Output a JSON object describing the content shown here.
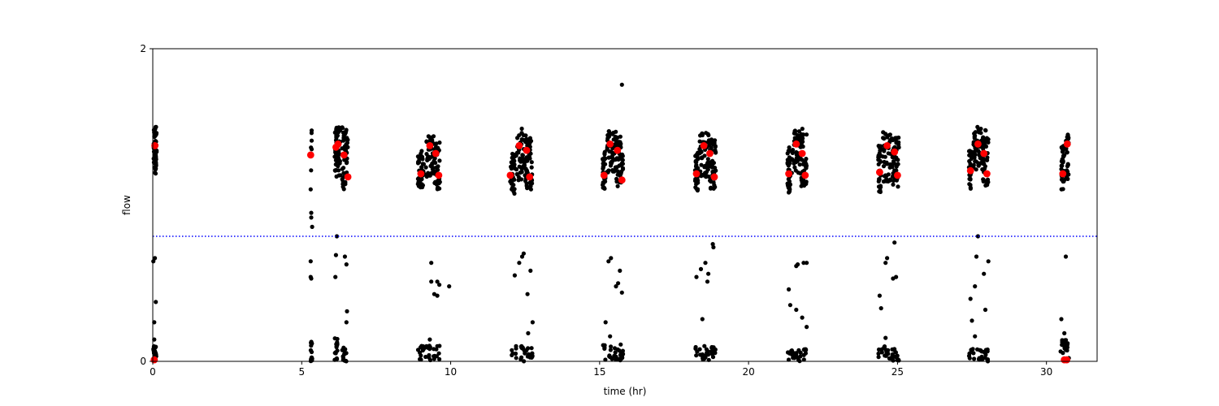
{
  "chart_data": {
    "type": "scatter",
    "xlabel": "time (hr)",
    "ylabel": "flow",
    "xlim": [
      0,
      31.7
    ],
    "ylim": [
      0,
      2
    ],
    "xticks": [
      0,
      5,
      10,
      15,
      20,
      25,
      30
    ],
    "yticks": [
      0,
      2
    ],
    "threshold": {
      "y": 0.8,
      "color": "#0000ff",
      "style": "dotted"
    },
    "colors": {
      "black": "#000000",
      "red": "#ff0000"
    },
    "series": [
      {
        "color": "#000000",
        "clusters": [
          {
            "x": [
              0.03,
              0.13
            ],
            "y": [
              1.2,
              1.5
            ],
            "count": 60
          },
          {
            "x": [
              5.3,
              5.35
            ],
            "y": [
              1.22,
              1.5
            ],
            "count": 6
          },
          {
            "x": [
              6.1,
              6.3
            ],
            "y": [
              1.18,
              1.5
            ],
            "count": 50
          },
          {
            "x": [
              6.35,
              6.55
            ],
            "y": [
              1.1,
              1.5
            ],
            "count": 45
          },
          {
            "x": [
              8.9,
              9.1
            ],
            "y": [
              1.1,
              1.35
            ],
            "count": 35
          },
          {
            "x": [
              9.15,
              9.45
            ],
            "y": [
              1.18,
              1.45
            ],
            "count": 45
          },
          {
            "x": [
              9.45,
              9.65
            ],
            "y": [
              1.1,
              1.4
            ],
            "count": 40
          },
          {
            "x": [
              12.0,
              12.15
            ],
            "y": [
              1.07,
              1.33
            ],
            "count": 35
          },
          {
            "x": [
              12.2,
              12.55
            ],
            "y": [
              1.15,
              1.5
            ],
            "count": 50
          },
          {
            "x": [
              12.55,
              12.75
            ],
            "y": [
              1.1,
              1.45
            ],
            "count": 40
          },
          {
            "x": [
              15.1,
              15.2
            ],
            "y": [
              1.1,
              1.35
            ],
            "count": 35
          },
          {
            "x": [
              15.25,
              15.55
            ],
            "y": [
              1.2,
              1.48
            ],
            "count": 50
          },
          {
            "x": [
              15.55,
              15.8
            ],
            "y": [
              1.12,
              1.45
            ],
            "count": 45
          },
          {
            "x": [
              18.2,
              18.3
            ],
            "y": [
              1.08,
              1.35
            ],
            "count": 35
          },
          {
            "x": [
              18.35,
              18.7
            ],
            "y": [
              1.18,
              1.47
            ],
            "count": 50
          },
          {
            "x": [
              18.7,
              18.9
            ],
            "y": [
              1.1,
              1.42
            ],
            "count": 40
          },
          {
            "x": [
              21.3,
              21.4
            ],
            "y": [
              1.08,
              1.38
            ],
            "count": 35
          },
          {
            "x": [
              21.45,
              21.75
            ],
            "y": [
              1.2,
              1.5
            ],
            "count": 50
          },
          {
            "x": [
              21.75,
              21.95
            ],
            "y": [
              1.12,
              1.5
            ],
            "count": 45
          },
          {
            "x": [
              24.35,
              24.45
            ],
            "y": [
              1.08,
              1.38
            ],
            "count": 35
          },
          {
            "x": [
              24.5,
              24.85
            ],
            "y": [
              1.15,
              1.47
            ],
            "count": 50
          },
          {
            "x": [
              24.85,
              25.05
            ],
            "y": [
              1.1,
              1.45
            ],
            "count": 40
          },
          {
            "x": [
              27.4,
              27.5
            ],
            "y": [
              1.1,
              1.38
            ],
            "count": 35
          },
          {
            "x": [
              27.55,
              27.85
            ],
            "y": [
              1.2,
              1.5
            ],
            "count": 50
          },
          {
            "x": [
              27.85,
              28.05
            ],
            "y": [
              1.12,
              1.48
            ],
            "count": 40
          },
          {
            "x": [
              30.5,
              30.6
            ],
            "y": [
              1.1,
              1.38
            ],
            "count": 35
          },
          {
            "x": [
              30.65,
              30.75
            ],
            "y": [
              1.15,
              1.45
            ],
            "count": 25
          },
          {
            "x": [
              0.02,
              0.12
            ],
            "y": [
              0,
              0.1
            ],
            "count": 20
          },
          {
            "x": [
              5.3,
              5.35
            ],
            "y": [
              0,
              0.15
            ],
            "count": 15
          },
          {
            "x": [
              6.1,
              6.2
            ],
            "y": [
              0,
              0.15
            ],
            "count": 15
          },
          {
            "x": [
              6.35,
              6.5
            ],
            "y": [
              0,
              0.09
            ],
            "count": 15
          },
          {
            "x": [
              8.9,
              9.65
            ],
            "y": [
              0,
              0.1
            ],
            "count": 30
          },
          {
            "x": [
              12.0,
              12.75
            ],
            "y": [
              0,
              0.1
            ],
            "count": 30
          },
          {
            "x": [
              15.1,
              15.8
            ],
            "y": [
              0,
              0.12
            ],
            "count": 30
          },
          {
            "x": [
              18.2,
              18.9
            ],
            "y": [
              0,
              0.1
            ],
            "count": 30
          },
          {
            "x": [
              21.3,
              21.95
            ],
            "y": [
              0,
              0.08
            ],
            "count": 30
          },
          {
            "x": [
              24.35,
              25.05
            ],
            "y": [
              0,
              0.1
            ],
            "count": 30
          },
          {
            "x": [
              27.4,
              28.05
            ],
            "y": [
              0,
              0.08
            ],
            "count": 30
          },
          {
            "x": [
              30.45,
              30.75
            ],
            "y": [
              0,
              0.14
            ],
            "count": 20
          }
        ],
        "points": [
          [
            0.02,
            0.64
          ],
          [
            0.07,
            0.66
          ],
          [
            0.1,
            0.38
          ],
          [
            0.05,
            0.25
          ],
          [
            0.05,
            0.14
          ],
          [
            5.3,
            1.1
          ],
          [
            5.32,
            0.95
          ],
          [
            5.32,
            0.92
          ],
          [
            5.35,
            0.86
          ],
          [
            5.3,
            0.64
          ],
          [
            5.3,
            0.54
          ],
          [
            5.32,
            0.53
          ],
          [
            6.18,
            0.8
          ],
          [
            6.15,
            0.68
          ],
          [
            6.13,
            0.54
          ],
          [
            6.45,
            0.67
          ],
          [
            6.5,
            0.62
          ],
          [
            6.52,
            0.32
          ],
          [
            6.5,
            0.25
          ],
          [
            9.95,
            0.48
          ],
          [
            9.35,
            0.63
          ],
          [
            9.35,
            0.51
          ],
          [
            9.45,
            0.43
          ],
          [
            9.55,
            0.51
          ],
          [
            9.62,
            0.49
          ],
          [
            9.55,
            0.42
          ],
          [
            9.3,
            0.14
          ],
          [
            12.15,
            0.55
          ],
          [
            12.3,
            0.63
          ],
          [
            12.4,
            0.67
          ],
          [
            12.45,
            0.69
          ],
          [
            12.58,
            0.43
          ],
          [
            12.68,
            0.58
          ],
          [
            12.75,
            0.25
          ],
          [
            12.6,
            0.18
          ],
          [
            15.2,
            0.25
          ],
          [
            15.3,
            0.64
          ],
          [
            15.38,
            0.66
          ],
          [
            15.55,
            0.48
          ],
          [
            15.62,
            0.5
          ],
          [
            15.68,
            0.58
          ],
          [
            15.75,
            0.44
          ],
          [
            15.35,
            0.16
          ],
          [
            15.75,
            1.77
          ],
          [
            18.25,
            0.54
          ],
          [
            18.4,
            0.59
          ],
          [
            18.55,
            0.63
          ],
          [
            18.65,
            0.56
          ],
          [
            18.62,
            0.51
          ],
          [
            18.8,
            0.75
          ],
          [
            18.82,
            0.73
          ],
          [
            18.45,
            0.27
          ],
          [
            21.35,
            0.46
          ],
          [
            21.4,
            0.36
          ],
          [
            21.6,
            0.33
          ],
          [
            21.6,
            0.61
          ],
          [
            21.65,
            0.62
          ],
          [
            21.85,
            0.63
          ],
          [
            21.95,
            0.63
          ],
          [
            21.8,
            0.28
          ],
          [
            21.95,
            0.22
          ],
          [
            24.4,
            0.42
          ],
          [
            24.45,
            0.34
          ],
          [
            24.6,
            0.63
          ],
          [
            24.65,
            0.66
          ],
          [
            24.85,
            0.53
          ],
          [
            24.95,
            0.54
          ],
          [
            24.9,
            0.76
          ],
          [
            24.6,
            0.15
          ],
          [
            27.45,
            0.4
          ],
          [
            27.5,
            0.26
          ],
          [
            27.6,
            0.48
          ],
          [
            27.65,
            0.67
          ],
          [
            27.7,
            0.8
          ],
          [
            27.95,
            0.33
          ],
          [
            27.9,
            0.56
          ],
          [
            28.05,
            0.64
          ],
          [
            27.6,
            0.16
          ],
          [
            30.5,
            0.27
          ],
          [
            30.65,
            0.67
          ],
          [
            30.6,
            0.18
          ]
        ]
      },
      {
        "color": "#ff0000",
        "points": [
          [
            0.07,
            1.38
          ],
          [
            0.05,
            0.01
          ],
          [
            5.3,
            1.32
          ],
          [
            6.15,
            1.37
          ],
          [
            6.22,
            1.39
          ],
          [
            6.42,
            1.32
          ],
          [
            6.55,
            1.18
          ],
          [
            9.0,
            1.2
          ],
          [
            9.3,
            1.38
          ],
          [
            9.5,
            1.33
          ],
          [
            9.6,
            1.19
          ],
          [
            12.0,
            1.19
          ],
          [
            12.3,
            1.38
          ],
          [
            12.55,
            1.35
          ],
          [
            12.65,
            1.18
          ],
          [
            15.15,
            1.19
          ],
          [
            15.35,
            1.39
          ],
          [
            15.6,
            1.35
          ],
          [
            15.75,
            1.16
          ],
          [
            18.25,
            1.2
          ],
          [
            18.5,
            1.38
          ],
          [
            18.7,
            1.33
          ],
          [
            18.85,
            1.18
          ],
          [
            21.35,
            1.2
          ],
          [
            21.6,
            1.39
          ],
          [
            21.8,
            1.33
          ],
          [
            21.9,
            1.19
          ],
          [
            24.4,
            1.21
          ],
          [
            24.65,
            1.38
          ],
          [
            24.9,
            1.34
          ],
          [
            25.0,
            1.19
          ],
          [
            27.45,
            1.22
          ],
          [
            27.7,
            1.39
          ],
          [
            27.9,
            1.33
          ],
          [
            28.0,
            1.2
          ],
          [
            30.55,
            1.2
          ],
          [
            30.7,
            1.39
          ],
          [
            30.6,
            0.01
          ],
          [
            30.68,
            0.01
          ]
        ]
      }
    ]
  }
}
